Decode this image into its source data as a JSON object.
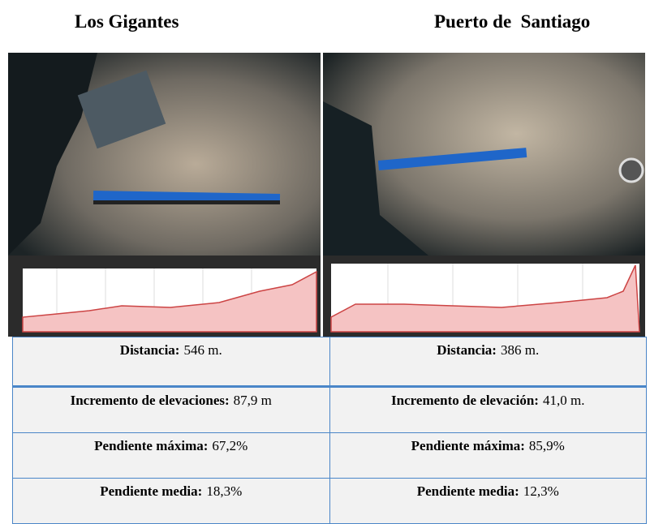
{
  "headers": [
    "Los Gigantes",
    "Puerto de  Santiago"
  ],
  "table": {
    "rows": [
      [
        {
          "label": "Distancia:",
          "value": "546 m."
        },
        {
          "label": "Distancia:",
          "value": "386 m."
        }
      ],
      [
        {
          "label": "Incremento de elevaciones:",
          "value": "87,9 m"
        },
        {
          "label": "Incremento de elevación:",
          "value": "41,0 m."
        }
      ],
      [
        {
          "label": "Pendiente máxima:",
          "value": "67,2%"
        },
        {
          "label": "Pendiente máxima:",
          "value": "85,9%"
        }
      ],
      [
        {
          "label": "Pendiente media:",
          "value": "18,3%"
        },
        {
          "label": "Pendiente media:",
          "value": "12,3%"
        }
      ]
    ]
  }
}
